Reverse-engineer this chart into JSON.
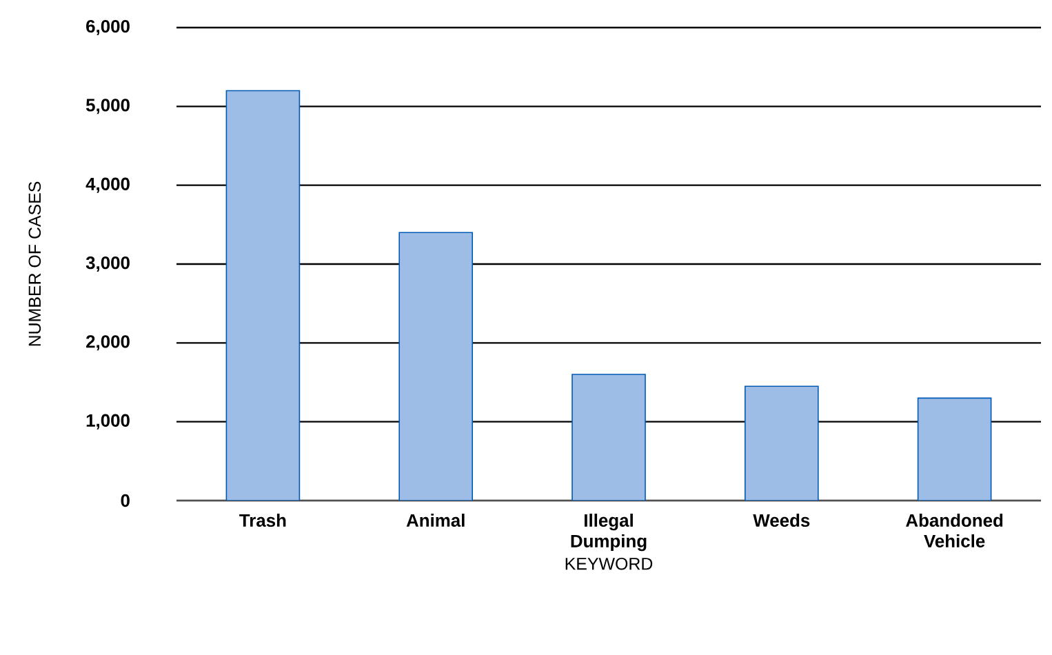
{
  "chart_data": {
    "type": "bar",
    "xlabel": "KEYWORD",
    "ylabel": "NUMBER OF CASES",
    "categories": [
      "Trash",
      "Animal",
      "Illegal Dumping",
      "Weeds",
      "Abandoned Vehicle"
    ],
    "values": [
      5200,
      3400,
      1600,
      1450,
      1300
    ],
    "color": "#9dbde6",
    "ylim": [
      0,
      6000
    ],
    "yticks": [
      {
        "value": 0,
        "label": "0"
      },
      {
        "value": 1000,
        "label": "1,000"
      },
      {
        "value": 2000,
        "label": "2,000"
      },
      {
        "value": 3000,
        "label": "3,000"
      },
      {
        "value": 4000,
        "label": "4,000"
      },
      {
        "value": 5000,
        "label": "5,000"
      },
      {
        "value": 6000,
        "label": "6,000"
      }
    ],
    "grid": "y"
  }
}
